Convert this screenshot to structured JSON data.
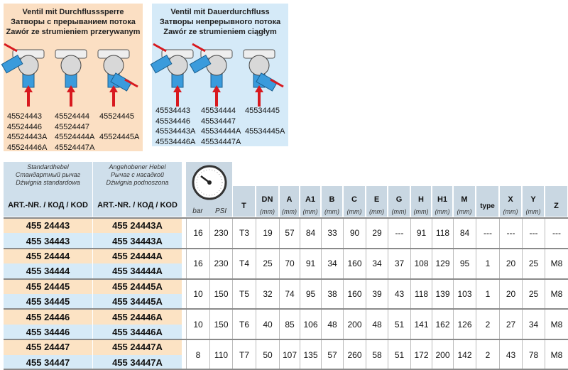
{
  "panels": [
    {
      "title": [
        "Ventil mit Durchflusssperre",
        "Затворы с прерыванием потока",
        "Zawór ze strumieniem przerywanym"
      ],
      "codes": [
        [
          "45524443",
          "45524444",
          "45524445"
        ],
        [
          "45524446",
          "45524447"
        ],
        [
          "45524443A",
          "45524444A",
          "45524445A"
        ],
        [
          "45524446A",
          "45524447A"
        ]
      ]
    },
    {
      "title": [
        "Ventil mit Dauerdurchfluss",
        "Затворы непрерывного потока",
        "Zawór ze strumieniem ciągłym"
      ],
      "codes": [
        [
          "45534443",
          "45534444",
          "45534445"
        ],
        [
          "45534446",
          "45534447"
        ],
        [
          "45534443A",
          "45534444A",
          "45534445A"
        ],
        [
          "45534446A",
          "45534447A"
        ]
      ]
    }
  ],
  "table": {
    "header": {
      "standard": {
        "lines": [
          "Standardhebel",
          "Стандартный рычаг",
          "Dźwignia standardowa"
        ],
        "label": "ART.-NR. / КОД / KOD"
      },
      "raised": {
        "lines": [
          "Angehobener Hebel",
          "Рычаг с насадкой",
          "Dźwignia podnoszona"
        ],
        "label": "ART.-NR. / КОД / KOD"
      },
      "columns": [
        {
          "name": "bar"
        },
        {
          "name": "PSI"
        },
        {
          "name": "T"
        },
        {
          "name": "DN",
          "unit": "(mm)"
        },
        {
          "name": "A",
          "unit": "(mm)"
        },
        {
          "name": "A1",
          "unit": "(mm)"
        },
        {
          "name": "B",
          "unit": "(mm)"
        },
        {
          "name": "C",
          "unit": "(mm)"
        },
        {
          "name": "E",
          "unit": "(mm)"
        },
        {
          "name": "G",
          "unit": "(mm)"
        },
        {
          "name": "H",
          "unit": "(mm)"
        },
        {
          "name": "H1",
          "unit": "(mm)"
        },
        {
          "name": "M",
          "unit": "(mm)"
        },
        {
          "name": "type"
        },
        {
          "name": "X",
          "unit": "(mm)"
        },
        {
          "name": "Y",
          "unit": "(mm)"
        },
        {
          "name": "Z"
        }
      ]
    },
    "rows": [
      {
        "standard": [
          "455 24443",
          "455 34443"
        ],
        "raised": [
          "455 24443A",
          "455 34443A"
        ],
        "values": [
          16,
          230,
          "T3",
          19,
          57,
          84,
          33,
          90,
          29,
          "---",
          91,
          118,
          84,
          "---",
          "---",
          "---",
          "---"
        ]
      },
      {
        "standard": [
          "455 24444",
          "455 34444"
        ],
        "raised": [
          "455 24444A",
          "455 34444A"
        ],
        "values": [
          16,
          230,
          "T4",
          25,
          70,
          91,
          34,
          160,
          34,
          37,
          108,
          129,
          95,
          1,
          20,
          25,
          "M8"
        ]
      },
      {
        "standard": [
          "455 24445",
          "455 34445"
        ],
        "raised": [
          "455 24445A",
          "455 34445A"
        ],
        "values": [
          10,
          150,
          "T5",
          32,
          74,
          95,
          38,
          160,
          39,
          43,
          118,
          139,
          103,
          1,
          20,
          25,
          "M8"
        ]
      },
      {
        "standard": [
          "455 24446",
          "455 34446"
        ],
        "raised": [
          "455 24446A",
          "455 34446A"
        ],
        "values": [
          10,
          150,
          "T6",
          40,
          85,
          106,
          48,
          200,
          48,
          51,
          141,
          162,
          126,
          2,
          27,
          34,
          "M8"
        ]
      },
      {
        "standard": [
          "455 24447",
          "455 34447"
        ],
        "raised": [
          "455 24447A",
          "455 34447A"
        ],
        "values": [
          8,
          110,
          "T7",
          50,
          107,
          135,
          57,
          260,
          58,
          51,
          172,
          200,
          142,
          2,
          43,
          78,
          "M8"
        ]
      }
    ]
  }
}
